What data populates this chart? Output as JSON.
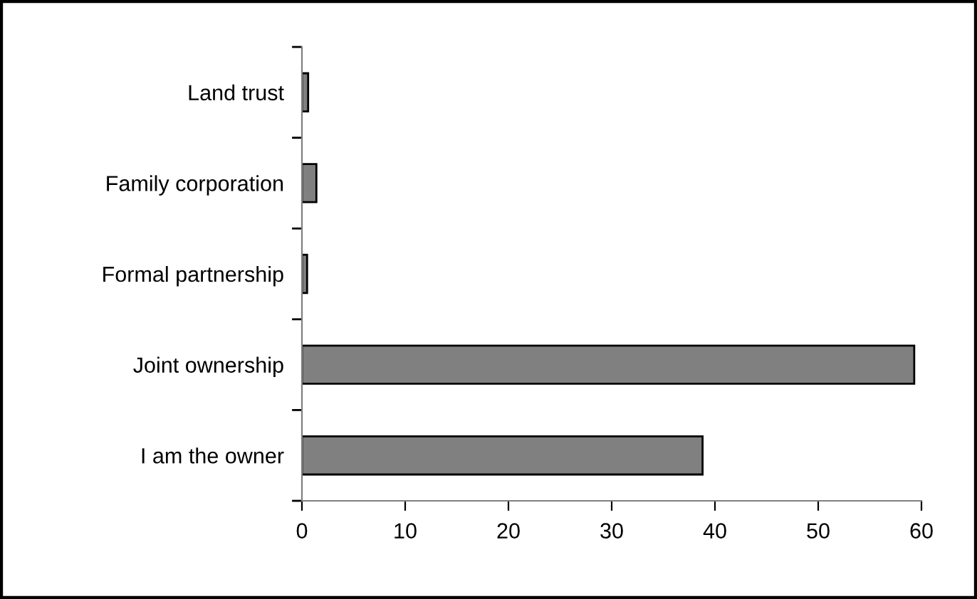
{
  "chart_data": {
    "type": "bar",
    "orientation": "horizontal",
    "categories": [
      "Land trust",
      "Family corporation",
      "Formal partnership",
      "Joint ownership",
      "I am the owner"
    ],
    "values": [
      0.6,
      1.4,
      0.5,
      59.3,
      38.8
    ],
    "color": "#808080",
    "xlim": [
      0,
      60
    ],
    "xticks": [
      0,
      10,
      20,
      30,
      40,
      50,
      60
    ],
    "grid": false,
    "legend": false
  }
}
